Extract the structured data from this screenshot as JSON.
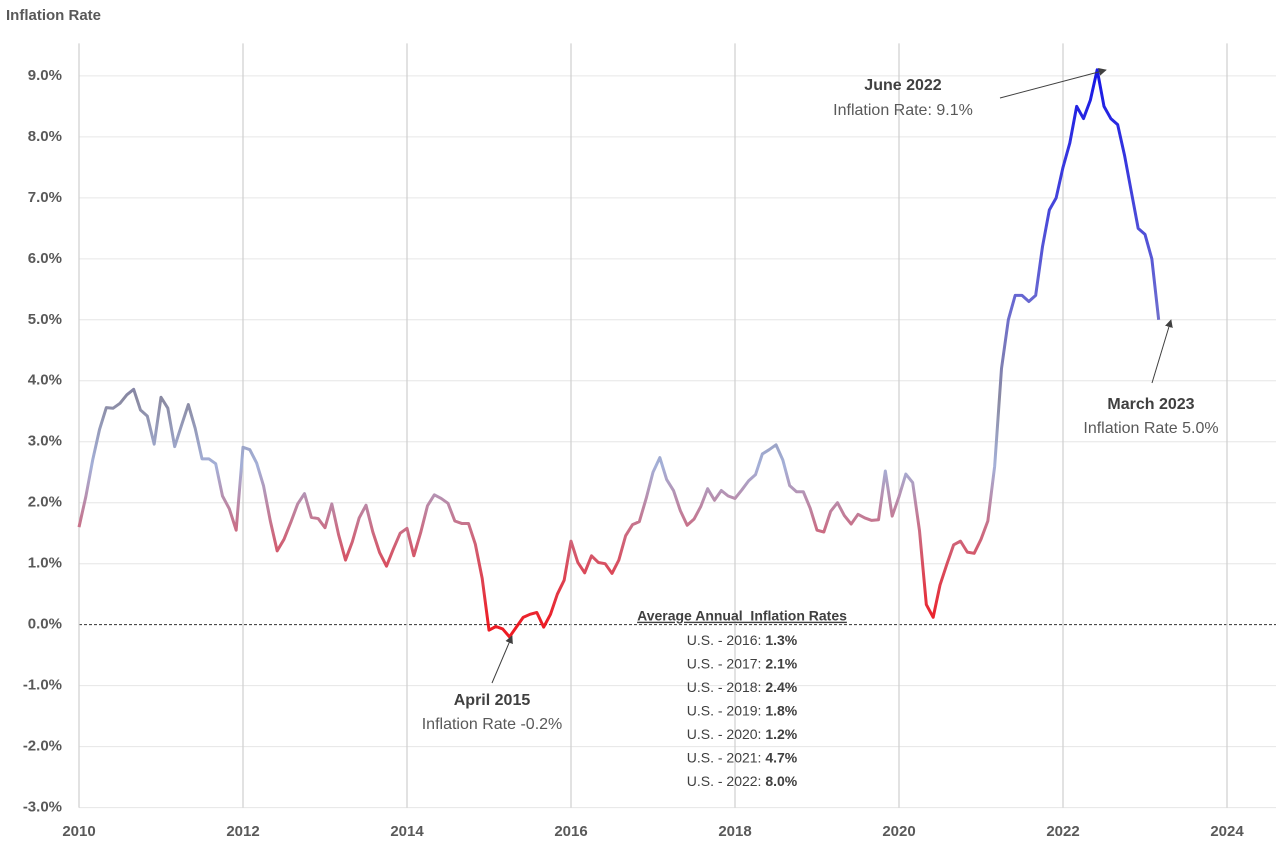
{
  "chart_data": {
    "type": "line",
    "y_axis_title": "Inflation Rate",
    "x": [
      "2010-01",
      "2010-02",
      "2010-03",
      "2010-04",
      "2010-05",
      "2010-06",
      "2010-07",
      "2010-08",
      "2010-09",
      "2010-10",
      "2010-11",
      "2010-12",
      "2011-01",
      "2011-02",
      "2011-03",
      "2011-04",
      "2011-05",
      "2011-06",
      "2011-07",
      "2011-08",
      "2011-09",
      "2011-10",
      "2011-11",
      "2011-12",
      "2012-01",
      "2012-02",
      "2012-03",
      "2012-04",
      "2012-05",
      "2012-06",
      "2012-07",
      "2012-08",
      "2012-09",
      "2012-10",
      "2012-11",
      "2012-12",
      "2013-01",
      "2013-02",
      "2013-03",
      "2013-04",
      "2013-05",
      "2013-06",
      "2013-07",
      "2013-08",
      "2013-09",
      "2013-10",
      "2013-11",
      "2013-12",
      "2014-01",
      "2014-02",
      "2014-03",
      "2014-04",
      "2014-05",
      "2014-06",
      "2014-07",
      "2014-08",
      "2014-09",
      "2014-10",
      "2014-11",
      "2014-12",
      "2015-01",
      "2015-02",
      "2015-03",
      "2015-04",
      "2015-05",
      "2015-06",
      "2015-07",
      "2015-08",
      "2015-09",
      "2015-10",
      "2015-11",
      "2015-12",
      "2016-01",
      "2016-02",
      "2016-03",
      "2016-04",
      "2016-05",
      "2016-06",
      "2016-07",
      "2016-08",
      "2016-09",
      "2016-10",
      "2016-11",
      "2016-12",
      "2017-01",
      "2017-02",
      "2017-03",
      "2017-04",
      "2017-05",
      "2017-06",
      "2017-07",
      "2017-08",
      "2017-09",
      "2017-10",
      "2017-11",
      "2017-12",
      "2018-01",
      "2018-02",
      "2018-03",
      "2018-04",
      "2018-05",
      "2018-06",
      "2018-07",
      "2018-08",
      "2018-09",
      "2018-10",
      "2018-11",
      "2018-12",
      "2019-01",
      "2019-02",
      "2019-03",
      "2019-04",
      "2019-05",
      "2019-06",
      "2019-07",
      "2019-08",
      "2019-09",
      "2019-10",
      "2019-11",
      "2019-12",
      "2020-01",
      "2020-02",
      "2020-03",
      "2020-04",
      "2020-05",
      "2020-06",
      "2020-07",
      "2020-08",
      "2020-09",
      "2020-10",
      "2020-11",
      "2020-12",
      "2021-01",
      "2021-02",
      "2021-03",
      "2021-04",
      "2021-05",
      "2021-06",
      "2021-07",
      "2021-08",
      "2021-09",
      "2021-10",
      "2021-11",
      "2021-12",
      "2022-01",
      "2022-02",
      "2022-03",
      "2022-04",
      "2022-05",
      "2022-06",
      "2022-07",
      "2022-08",
      "2022-09",
      "2022-10",
      "2022-11",
      "2022-12",
      "2023-01",
      "2023-02",
      "2023-03"
    ],
    "series": [
      {
        "name": "Inflation Rate",
        "values": [
          1.6,
          2.1,
          2.7,
          3.2,
          3.56,
          3.55,
          3.63,
          3.77,
          3.86,
          3.52,
          3.42,
          2.96,
          3.73,
          3.55,
          2.92,
          3.27,
          3.61,
          3.22,
          2.72,
          2.72,
          2.64,
          2.11,
          1.9,
          1.55,
          2.91,
          2.87,
          2.65,
          2.28,
          1.7,
          1.21,
          1.4,
          1.68,
          1.98,
          2.15,
          1.76,
          1.74,
          1.59,
          1.98,
          1.47,
          1.06,
          1.36,
          1.75,
          1.96,
          1.52,
          1.18,
          0.96,
          1.24,
          1.5,
          1.58,
          1.13,
          1.51,
          1.95,
          2.13,
          2.07,
          1.99,
          1.7,
          1.66,
          1.66,
          1.32,
          0.76,
          -0.09,
          -0.03,
          -0.07,
          -0.2,
          -0.04,
          0.12,
          0.17,
          0.2,
          -0.04,
          0.17,
          0.5,
          0.73,
          1.37,
          1.02,
          0.85,
          1.13,
          1.02,
          1.0,
          0.84,
          1.06,
          1.46,
          1.64,
          1.69,
          2.07,
          2.5,
          2.74,
          2.38,
          2.2,
          1.87,
          1.63,
          1.73,
          1.94,
          2.23,
          2.04,
          2.2,
          2.11,
          2.07,
          2.21,
          2.36,
          2.46,
          2.8,
          2.87,
          2.95,
          2.7,
          2.28,
          2.18,
          2.18,
          1.91,
          1.55,
          1.52,
          1.86,
          2.0,
          1.79,
          1.65,
          1.81,
          1.75,
          1.71,
          1.72,
          2.52,
          1.78,
          2.1,
          2.47,
          2.33,
          1.54,
          0.33,
          0.12,
          0.65,
          0.99,
          1.31,
          1.37,
          1.19,
          1.17,
          1.4,
          1.7,
          2.6,
          4.2,
          5.0,
          5.4,
          5.4,
          5.3,
          5.4,
          6.2,
          6.8,
          7.0,
          7.5,
          7.9,
          8.5,
          8.3,
          8.6,
          9.1,
          8.5,
          8.3,
          8.2,
          7.7,
          7.1,
          6.5,
          6.4,
          6.0,
          5.0
        ]
      }
    ],
    "color_stops": [
      {
        "value": 0,
        "color": "#ee1c24"
      },
      {
        "value": 1.5,
        "color": "#cc6a80"
      },
      {
        "value": 2.6,
        "color": "#a4b0d8"
      },
      {
        "value": 3.7,
        "color": "#8a8aa2"
      },
      {
        "value": 5.2,
        "color": "#6a6ad0"
      },
      {
        "value": 9,
        "color": "#1818e6"
      }
    ],
    "xlim": [
      2010,
      2024.5
    ],
    "xticks": [
      2010,
      2012,
      2014,
      2016,
      2018,
      2020,
      2022,
      2024
    ],
    "ylim": [
      -3,
      9.5
    ],
    "yticks": [
      {
        "value": -3,
        "label": "-3.0%"
      },
      {
        "value": -2,
        "label": "-2.0%"
      },
      {
        "value": -1,
        "label": "-1.0%"
      },
      {
        "value": 0,
        "label": "0.0%"
      },
      {
        "value": 1,
        "label": "1.0%"
      },
      {
        "value": 2,
        "label": "2.0%"
      },
      {
        "value": 3,
        "label": "3.0%"
      },
      {
        "value": 4,
        "label": "4.0%"
      },
      {
        "value": 5,
        "label": "5.0%"
      },
      {
        "value": 6,
        "label": "6.0%"
      },
      {
        "value": 7,
        "label": "7.0%"
      },
      {
        "value": 8,
        "label": "8.0%"
      },
      {
        "value": 9,
        "label": "9.0%"
      }
    ],
    "grid": true,
    "annotations": [
      {
        "title": "June 2022",
        "text": "Inflation Rate: 9.1%"
      },
      {
        "title": "March 2023",
        "text": "Inflation Rate 5.0%"
      },
      {
        "title": "April 2015",
        "text": "Inflation Rate -0.2%"
      }
    ],
    "averages": {
      "title": "Average Annual  Inflation Rates",
      "rows": [
        {
          "label": "U.S. - 2016:",
          "value": "1.3%"
        },
        {
          "label": "U.S. - 2017:",
          "value": "2.1%"
        },
        {
          "label": "U.S. - 2018:",
          "value": "2.4%"
        },
        {
          "label": "U.S. - 2019:",
          "value": "1.8%"
        },
        {
          "label": "U.S. - 2020:",
          "value": "1.2%"
        },
        {
          "label": "U.S. - 2021:",
          "value": "4.7%"
        },
        {
          "label": "U.S. - 2022:",
          "value": "8.0%"
        }
      ]
    }
  }
}
